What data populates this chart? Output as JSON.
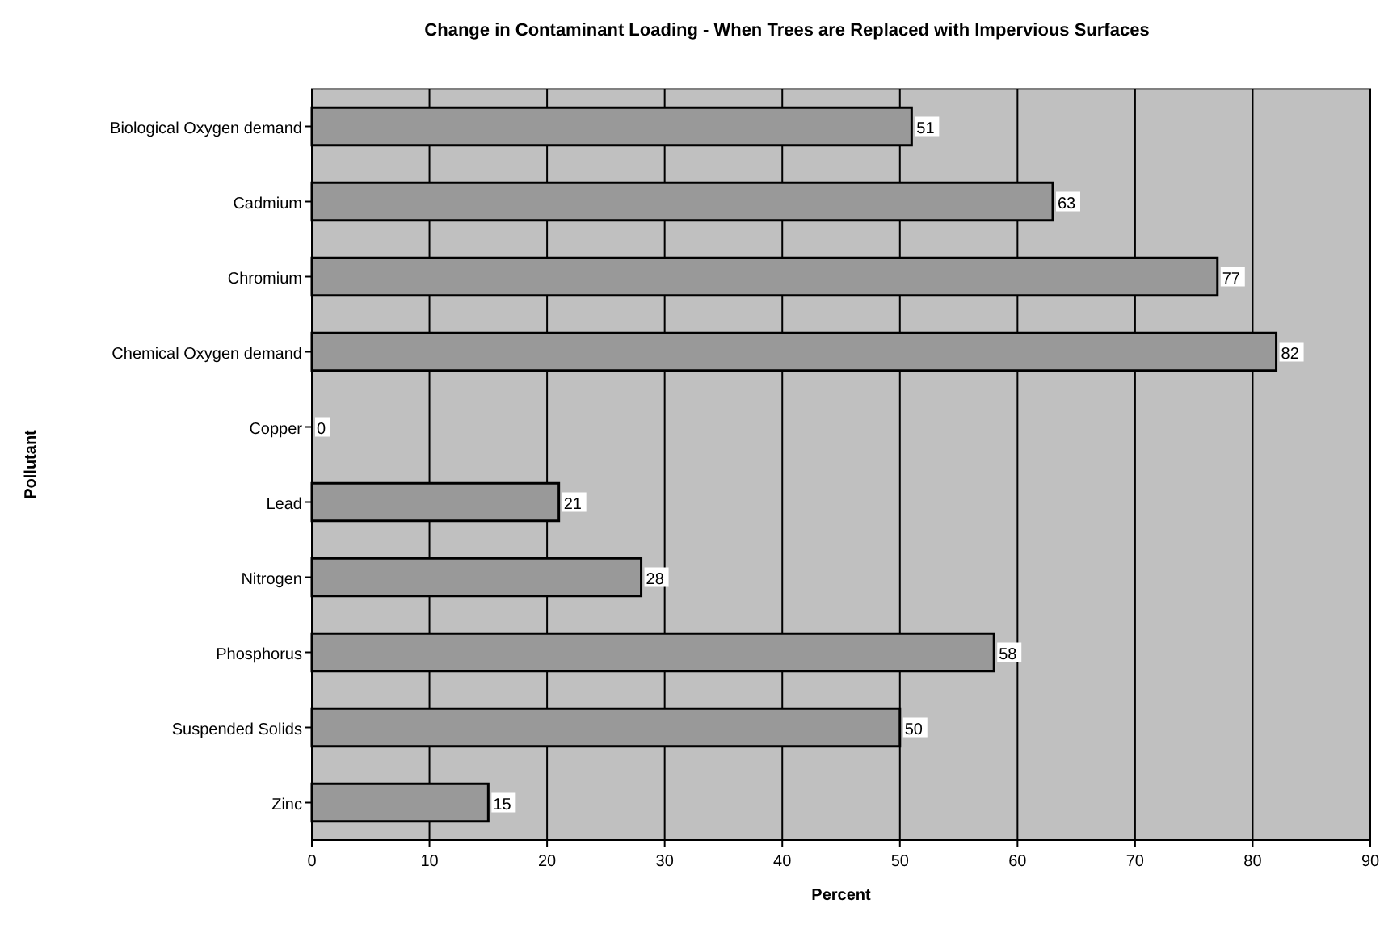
{
  "chart_data": {
    "type": "bar",
    "orientation": "horizontal",
    "title": "Change in Contaminant Loading - When Trees are Replaced with Impervious Surfaces",
    "xlabel": "Percent",
    "ylabel": "Pollutant",
    "categories": [
      "Biological Oxygen demand",
      "Cadmium",
      "Chromium",
      "Chemical Oxygen demand",
      "Copper",
      "Lead",
      "Nitrogen",
      "Phosphorus",
      "Suspended Solids",
      "Zinc"
    ],
    "values": [
      51,
      63,
      77,
      82,
      0,
      21,
      28,
      58,
      50,
      15
    ],
    "color": "#999999",
    "xlim": [
      0,
      90
    ],
    "xticks": [
      0,
      10,
      20,
      30,
      40,
      50,
      60,
      70,
      80,
      90
    ],
    "grid": "x",
    "data_labels": true
  }
}
